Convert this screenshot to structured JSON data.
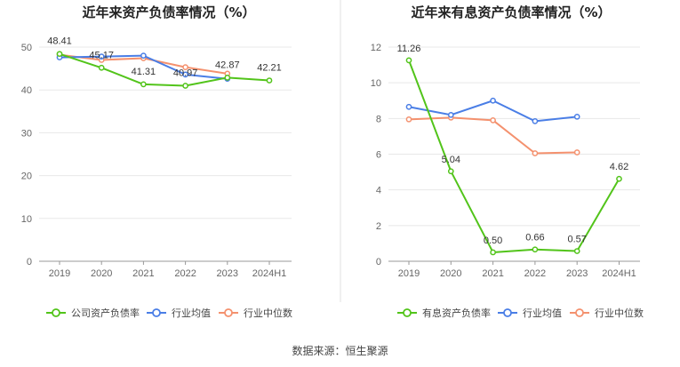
{
  "colors": {
    "company": "#52c41a",
    "industry_avg": "#4a7ee6",
    "industry_median": "#f4916e",
    "grid": "#e8e8e8",
    "axis": "#999999"
  },
  "source_text": "数据来源：恒生聚源",
  "chart_data": [
    {
      "type": "line",
      "title": "近年来资产负债率情况（%）",
      "categories": [
        "2019",
        "2020",
        "2021",
        "2022",
        "2023",
        "2024H1"
      ],
      "ylim": [
        0,
        50
      ],
      "yticks": [
        0,
        10,
        20,
        30,
        40,
        50
      ],
      "grid": true,
      "legend_position": "bottom",
      "series": [
        {
          "name": "公司资产负债率",
          "color": "#52c41a",
          "values": [
            48.41,
            45.17,
            41.31,
            40.97,
            42.87,
            42.21
          ],
          "labels": [
            "48.41",
            "45.17",
            "41.31",
            "40.97",
            "42.87",
            "42.21"
          ]
        },
        {
          "name": "行业均值",
          "color": "#4a7ee6",
          "values": [
            47.6,
            47.8,
            48.0,
            43.6,
            42.6,
            null
          ]
        },
        {
          "name": "行业中位数",
          "color": "#f4916e",
          "values": [
            48.2,
            47.0,
            47.4,
            45.3,
            43.8,
            null
          ]
        }
      ]
    },
    {
      "type": "line",
      "title": "近年来有息资产负债率情况（%）",
      "categories": [
        "2019",
        "2020",
        "2021",
        "2022",
        "2023",
        "2024H1"
      ],
      "ylim": [
        0,
        12
      ],
      "yticks": [
        0,
        2,
        4,
        6,
        8,
        10,
        12
      ],
      "grid": true,
      "legend_position": "bottom",
      "series": [
        {
          "name": "有息资产负债率",
          "color": "#52c41a",
          "values": [
            11.26,
            5.04,
            0.5,
            0.66,
            0.57,
            4.62
          ],
          "labels": [
            "11.26",
            "5.04",
            "0.50",
            "0.66",
            "0.57",
            "4.62"
          ]
        },
        {
          "name": "行业均值",
          "color": "#4a7ee6",
          "values": [
            8.65,
            8.2,
            9.0,
            7.85,
            8.1,
            null
          ]
        },
        {
          "name": "行业中位数",
          "color": "#f4916e",
          "values": [
            7.95,
            8.05,
            7.9,
            6.05,
            6.1,
            null
          ]
        }
      ]
    }
  ]
}
